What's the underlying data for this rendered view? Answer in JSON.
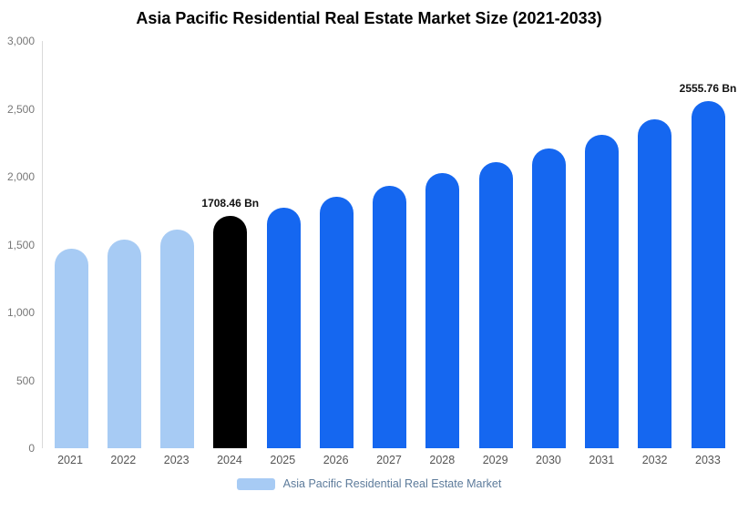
{
  "title": "Asia Pacific Residential Real Estate Market Size (2021-2033)",
  "chart_data": {
    "type": "bar",
    "title": "Asia Pacific Residential Real Estate Market Size (2021-2033)",
    "xlabel": "",
    "ylabel": "",
    "ylim": [
      0,
      3000
    ],
    "grid": false,
    "legend_position": "bottom",
    "legend": "Asia Pacific Residential Real Estate Market",
    "categories": [
      "2021",
      "2022",
      "2023",
      "2024",
      "2025",
      "2026",
      "2027",
      "2028",
      "2029",
      "2030",
      "2031",
      "2032",
      "2033"
    ],
    "values": [
      1470,
      1540,
      1610,
      1708.46,
      1775,
      1850,
      1935,
      2025,
      2110,
      2210,
      2310,
      2425,
      2555.76
    ],
    "bars": [
      {
        "year": "2021",
        "value": 1470,
        "color": "#A7CBF4",
        "label": ""
      },
      {
        "year": "2022",
        "value": 1540,
        "color": "#A7CBF4",
        "label": ""
      },
      {
        "year": "2023",
        "value": 1610,
        "color": "#A7CBF4",
        "label": ""
      },
      {
        "year": "2024",
        "value": 1708.46,
        "color": "#000000",
        "label": "1708.46 Bn"
      },
      {
        "year": "2025",
        "value": 1775,
        "color": "#1567F0",
        "label": ""
      },
      {
        "year": "2026",
        "value": 1850,
        "color": "#1567F0",
        "label": ""
      },
      {
        "year": "2027",
        "value": 1935,
        "color": "#1567F0",
        "label": ""
      },
      {
        "year": "2028",
        "value": 2025,
        "color": "#1567F0",
        "label": ""
      },
      {
        "year": "2029",
        "value": 2110,
        "color": "#1567F0",
        "label": ""
      },
      {
        "year": "2030",
        "value": 2210,
        "color": "#1567F0",
        "label": ""
      },
      {
        "year": "2031",
        "value": 2310,
        "color": "#1567F0",
        "label": ""
      },
      {
        "year": "2032",
        "value": 2425,
        "color": "#1567F0",
        "label": ""
      },
      {
        "year": "2033",
        "value": 2555.76,
        "color": "#1567F0",
        "label": "2555.76 Bn"
      }
    ],
    "yticks": [
      {
        "label": "3,000",
        "value": 3000
      },
      {
        "label": "2,500",
        "value": 2500
      },
      {
        "label": "2,000",
        "value": 2000
      },
      {
        "label": "1,500",
        "value": 1500
      },
      {
        "label": "1,000",
        "value": 1000
      },
      {
        "label": "500",
        "value": 500
      },
      {
        "label": "0",
        "value": 0
      }
    ],
    "colors": {
      "historical": "#A7CBF4",
      "current": "#000000",
      "forecast": "#1567F0",
      "legend_swatch": "#A7CBF4"
    }
  }
}
